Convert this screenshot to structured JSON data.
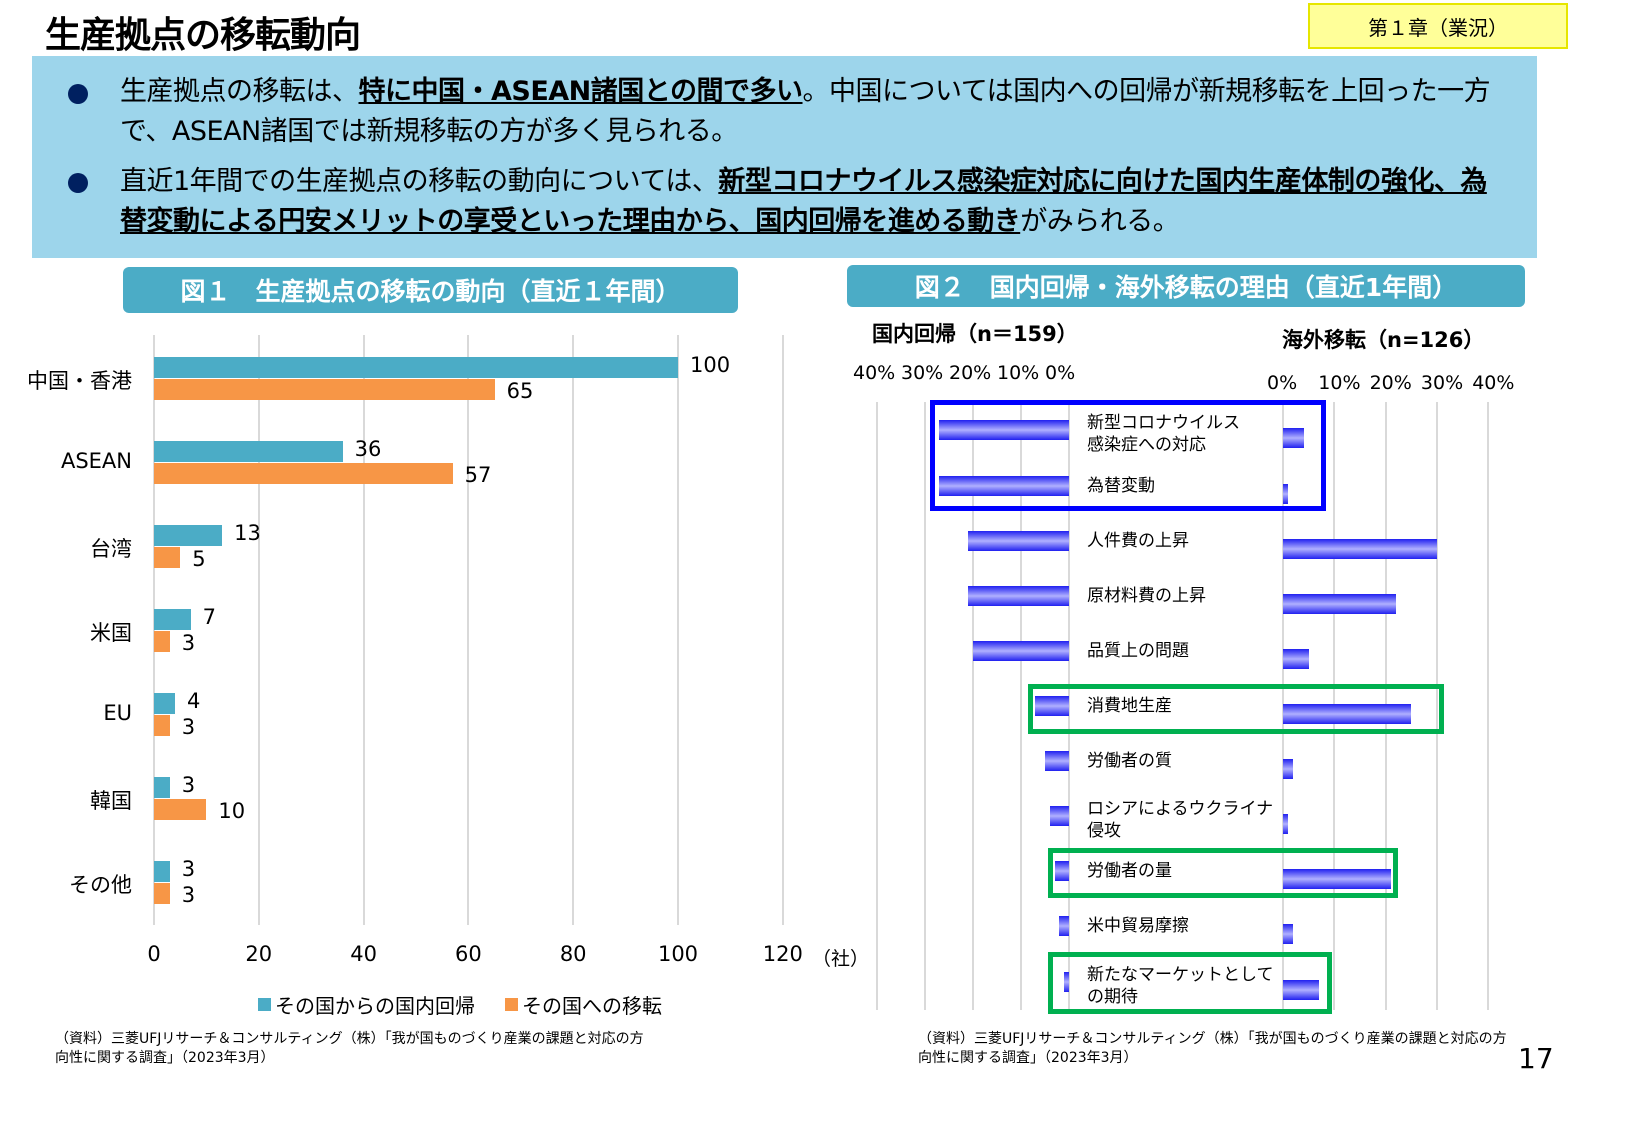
{
  "title": "生産拠点の移転動向",
  "chapter": "第１章（業況）",
  "summary": {
    "b1": {
      "t1": "生産拠点の移転は、",
      "bold": "特に中国・ASEAN諸国との間で多い",
      "t2": "。中国については国内への回帰が新規移転を上回った一方で、ASEAN諸国では新規移転の方が多く見られる。"
    },
    "b2": {
      "t1": "直近1年間での生産拠点の移転の動向については、",
      "bold": "新型コロナウイルス感染症対応に向けた国内生産体制の強化、為替変動による円安メリットの享受といった理由から、国内回帰を進める動き",
      "t2": "がみられる。"
    }
  },
  "fig1": {
    "header": "図１　生産拠点の移転の動向（直近１年間）",
    "source": "（資料）三菱UFJリサーチ＆コンサルティング（株）「我が国ものづくり産業の課題と対応の方向性に関する調査」（2023年3月）"
  },
  "fig2": {
    "header": "図２　国内回帰・海外移転の理由（直近1年間）",
    "source": "（資料）三菱UFJリサーチ＆コンサルティング（株）「我が国ものづくり産業の課題と対応の方向性に関する調査」（2023年3月）"
  },
  "page_number": "17",
  "chart_data": [
    {
      "type": "bar",
      "orientation": "horizontal",
      "categories": [
        "中国・香港",
        "ASEAN",
        "台湾",
        "米国",
        "EU",
        "韓国",
        "その他"
      ],
      "series": [
        {
          "name": "その国からの国内回帰",
          "color": "#4bacc6",
          "values": [
            100,
            36,
            13,
            7,
            4,
            3,
            3
          ]
        },
        {
          "name": "その国への移転",
          "color": "#f79646",
          "values": [
            65,
            57,
            5,
            3,
            3,
            10,
            3
          ]
        }
      ],
      "xticks": [
        "0",
        "20",
        "40",
        "60",
        "80",
        "100",
        "120"
      ],
      "xlim": [
        0,
        120
      ],
      "unit": "（社）",
      "grid": true,
      "legend": "bottom"
    },
    {
      "type": "bar",
      "orientation": "horizontal-butterfly",
      "categories": [
        "新型コロナウイルス\n感染症への対応",
        "為替変動",
        "人件費の上昇",
        "原材料費の上昇",
        "品質上の問題",
        "消費地生産",
        "労働者の質",
        "ロシアによるウクライナ\n侵攻",
        "労働者の量",
        "米中貿易摩擦",
        "新たなマーケットとして\nの期待"
      ],
      "series": [
        {
          "name": "国内回帰（n＝159）",
          "values": [
            27,
            27,
            21,
            21,
            20,
            7,
            5,
            4,
            3,
            2,
            1
          ]
        },
        {
          "name": "海外移転（n=126）",
          "values": [
            4,
            1,
            30,
            22,
            5,
            25,
            2,
            1,
            21,
            2,
            7
          ]
        }
      ],
      "left_ticks": [
        "40%",
        "30%",
        "20%",
        "10%",
        "0%"
      ],
      "right_ticks": [
        "0%",
        "10%",
        "20%",
        "30%",
        "40%"
      ],
      "xlim": [
        0,
        40
      ],
      "bar_color": "#2020f0",
      "highlight_blue": [
        0,
        1
      ],
      "highlight_green": [
        5,
        8,
        10
      ],
      "highlight_colors": {
        "blue": "#0000ff",
        "green": "#00b050"
      }
    }
  ]
}
